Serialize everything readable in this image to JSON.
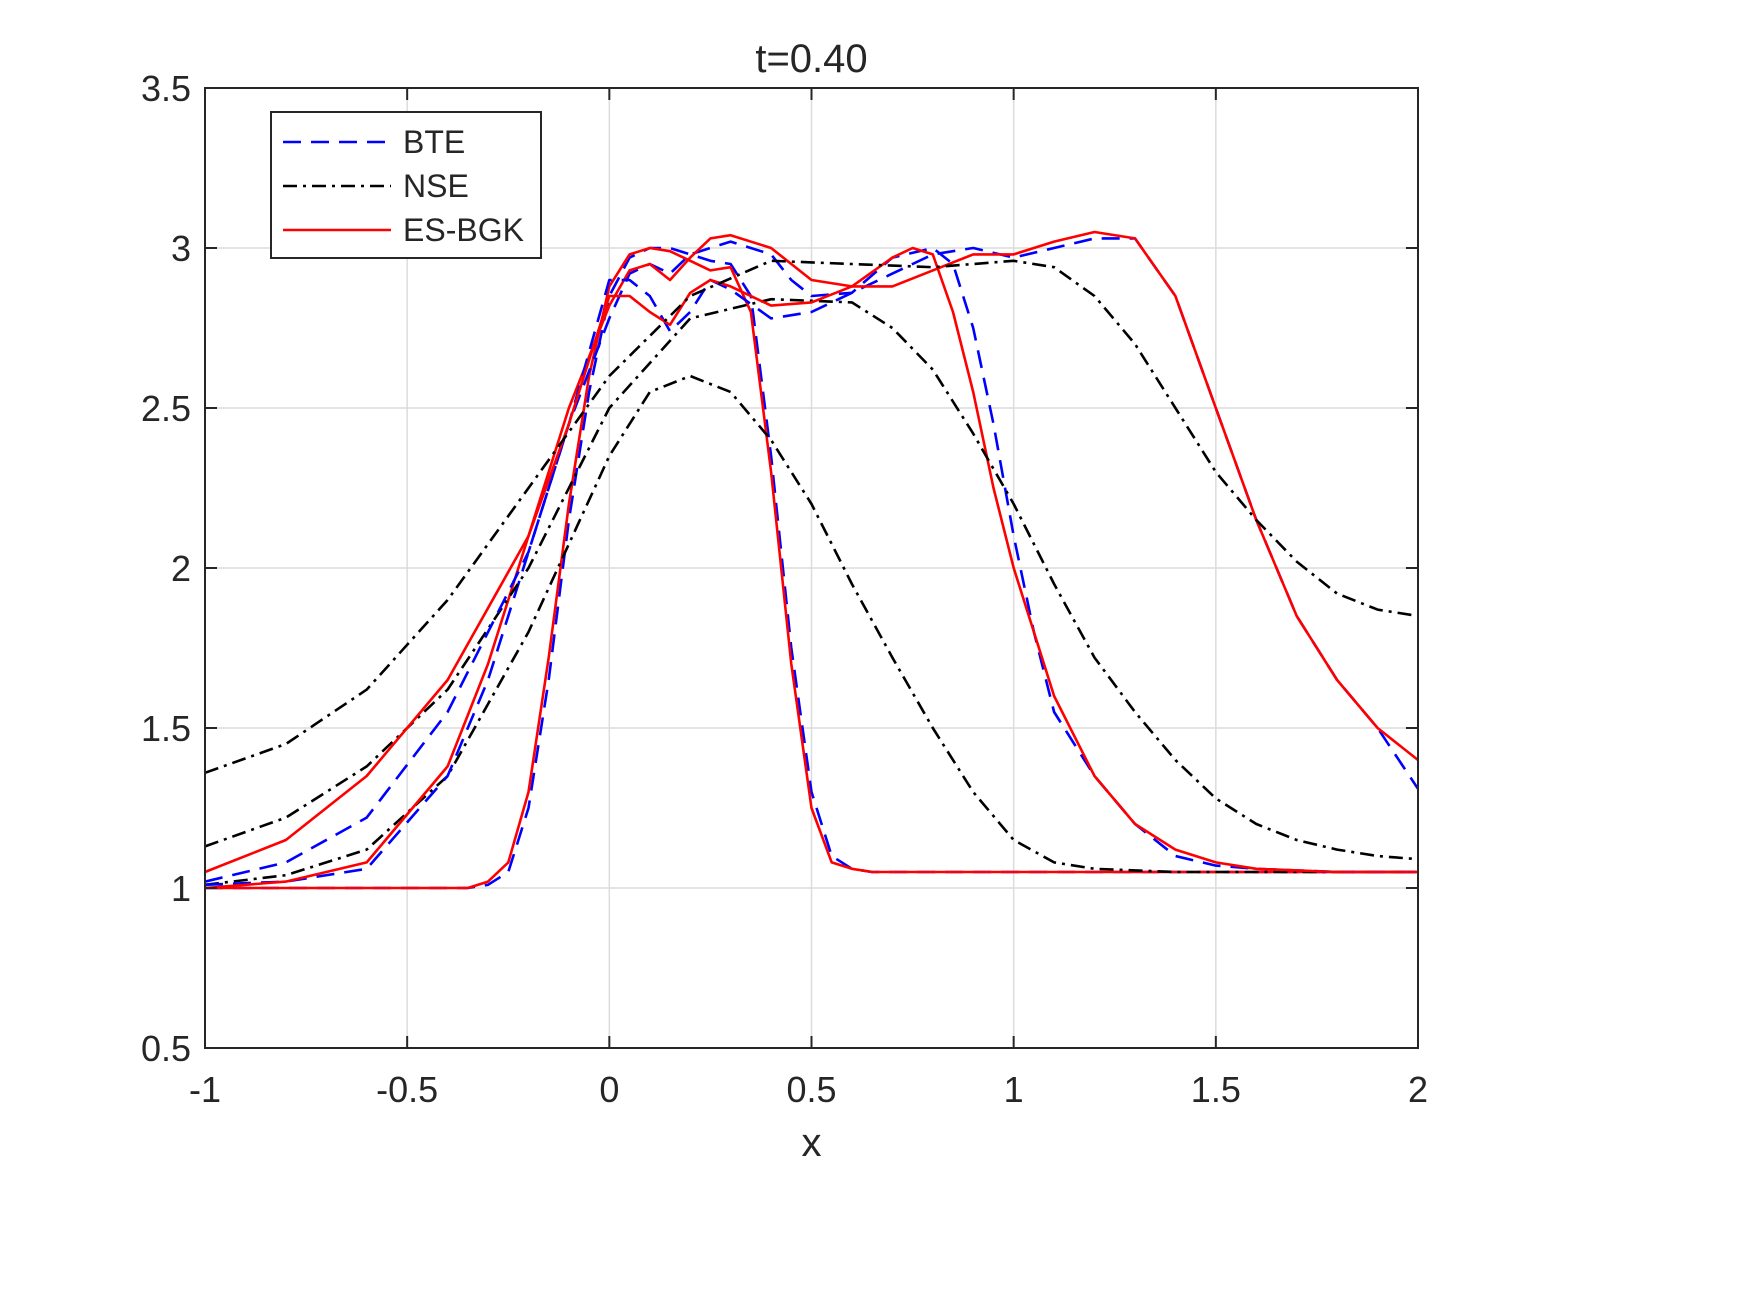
{
  "chart_data": {
    "type": "line",
    "title": "t=0.40",
    "xlabel": "x",
    "ylabel": "",
    "xlim": [
      -1,
      2
    ],
    "ylim": [
      0.5,
      3.5
    ],
    "xticks": [
      -1,
      -0.5,
      0,
      0.5,
      1,
      1.5,
      2
    ],
    "xtick_labels": [
      "-1",
      "-0.5",
      "0",
      "0.5",
      "1",
      "1.5",
      "2"
    ],
    "yticks": [
      0.5,
      1,
      1.5,
      2,
      2.5,
      3,
      3.5
    ],
    "ytick_labels": [
      "0.5",
      "1",
      "1.5",
      "2",
      "2.5",
      "3",
      "3.5"
    ],
    "grid": true,
    "legend_position": "top-left",
    "legend": [
      {
        "label": "BTE",
        "color": "#0000ff",
        "dash": "dashed"
      },
      {
        "label": "NSE",
        "color": "#000000",
        "dash": "dashdot"
      },
      {
        "label": "ES-BGK",
        "color": "#ff0000",
        "dash": "solid"
      }
    ],
    "series": [
      {
        "name": "BTE",
        "color": "#0000ff",
        "dash": "dashed",
        "x": [
          -1,
          -0.5,
          -0.35,
          -0.3,
          -0.25,
          -0.2,
          -0.15,
          -0.1,
          -0.05,
          0,
          0.05,
          0.1,
          0.15,
          0.2,
          0.25,
          0.3,
          0.35,
          0.4,
          0.45,
          0.5,
          0.55,
          0.6,
          0.65,
          0.7,
          0.8,
          1,
          1.5,
          2
        ],
        "y": [
          1,
          1,
          1,
          1.01,
          1.05,
          1.25,
          1.65,
          2.15,
          2.55,
          2.85,
          2.97,
          3,
          3,
          2.98,
          2.96,
          2.95,
          2.85,
          2.35,
          1.75,
          1.3,
          1.1,
          1.06,
          1.05,
          1.05,
          1.05,
          1.05,
          1.05,
          1.05
        ]
      },
      {
        "name": "ES-BGK",
        "color": "#ff0000",
        "dash": "solid",
        "x": [
          -1,
          -0.5,
          -0.35,
          -0.3,
          -0.25,
          -0.2,
          -0.15,
          -0.1,
          -0.05,
          0,
          0.05,
          0.1,
          0.15,
          0.2,
          0.25,
          0.3,
          0.35,
          0.4,
          0.45,
          0.5,
          0.55,
          0.6,
          0.65,
          0.7,
          0.8,
          1,
          1.5,
          2
        ],
        "y": [
          1,
          1,
          1,
          1.02,
          1.08,
          1.3,
          1.72,
          2.2,
          2.6,
          2.88,
          2.98,
          3,
          2.99,
          2.96,
          2.93,
          2.94,
          2.8,
          2.3,
          1.7,
          1.25,
          1.08,
          1.06,
          1.05,
          1.05,
          1.05,
          1.05,
          1.05,
          1.05
        ]
      },
      {
        "name": "NSE",
        "color": "#000000",
        "dash": "dashdot",
        "x": [
          -1,
          -0.8,
          -0.6,
          -0.4,
          -0.2,
          0,
          0.1,
          0.2,
          0.3,
          0.4,
          0.5,
          0.6,
          0.7,
          0.8,
          0.9,
          1,
          1.1,
          1.2,
          1.4,
          1.6,
          1.8,
          2
        ],
        "y": [
          1.01,
          1.04,
          1.12,
          1.35,
          1.8,
          2.35,
          2.55,
          2.6,
          2.55,
          2.4,
          2.2,
          1.95,
          1.72,
          1.5,
          1.3,
          1.15,
          1.08,
          1.06,
          1.05,
          1.05,
          1.05,
          1.05
        ]
      },
      {
        "name": "BTE",
        "color": "#0000ff",
        "dash": "dashed",
        "x": [
          -1,
          -0.8,
          -0.6,
          -0.4,
          -0.3,
          -0.2,
          -0.1,
          0,
          0.05,
          0.1,
          0.15,
          0.2,
          0.3,
          0.4,
          0.45,
          0.5,
          0.6,
          0.7,
          0.8,
          0.85,
          0.9,
          0.95,
          1,
          1.05,
          1.1,
          1.2,
          1.3,
          1.4,
          1.5,
          1.6,
          1.8,
          2
        ],
        "y": [
          1.01,
          1.02,
          1.06,
          1.35,
          1.65,
          2.05,
          2.45,
          2.78,
          2.92,
          2.95,
          2.92,
          2.98,
          3.02,
          2.98,
          2.9,
          2.85,
          2.86,
          2.97,
          3,
          2.95,
          2.75,
          2.45,
          2.1,
          1.8,
          1.55,
          1.35,
          1.2,
          1.1,
          1.07,
          1.06,
          1.05,
          1.05
        ]
      },
      {
        "name": "ES-BGK",
        "color": "#ff0000",
        "dash": "solid",
        "x": [
          -1,
          -0.8,
          -0.6,
          -0.4,
          -0.3,
          -0.2,
          -0.1,
          0,
          0.05,
          0.1,
          0.15,
          0.2,
          0.25,
          0.3,
          0.4,
          0.5,
          0.6,
          0.7,
          0.75,
          0.8,
          0.85,
          0.9,
          0.95,
          1,
          1.1,
          1.2,
          1.3,
          1.4,
          1.5,
          1.6,
          1.8,
          2
        ],
        "y": [
          1,
          1.02,
          1.08,
          1.38,
          1.7,
          2.1,
          2.5,
          2.82,
          2.93,
          2.95,
          2.9,
          2.97,
          3.03,
          3.04,
          3,
          2.9,
          2.88,
          2.97,
          3,
          2.98,
          2.8,
          2.55,
          2.25,
          2,
          1.6,
          1.35,
          1.2,
          1.12,
          1.08,
          1.06,
          1.05,
          1.05
        ]
      },
      {
        "name": "NSE",
        "color": "#000000",
        "dash": "dashdot",
        "x": [
          -1,
          -0.8,
          -0.6,
          -0.4,
          -0.2,
          0,
          0.2,
          0.4,
          0.6,
          0.7,
          0.8,
          0.9,
          1,
          1.1,
          1.2,
          1.3,
          1.4,
          1.5,
          1.6,
          1.7,
          1.8,
          1.9,
          2
        ],
        "y": [
          1.13,
          1.22,
          1.38,
          1.62,
          2,
          2.5,
          2.78,
          2.84,
          2.83,
          2.75,
          2.62,
          2.42,
          2.2,
          1.95,
          1.72,
          1.55,
          1.4,
          1.28,
          1.2,
          1.15,
          1.12,
          1.1,
          1.09
        ]
      },
      {
        "name": "BTE",
        "color": "#0000ff",
        "dash": "dashed",
        "x": [
          -1,
          -0.8,
          -0.6,
          -0.4,
          -0.2,
          -0.1,
          0,
          0.05,
          0.1,
          0.15,
          0.2,
          0.25,
          0.3,
          0.4,
          0.5,
          0.6,
          0.7,
          0.8,
          0.9,
          1,
          1.1,
          1.2,
          1.3,
          1.4,
          1.5,
          1.6,
          1.7,
          1.8,
          1.9,
          2
        ],
        "y": [
          1.02,
          1.08,
          1.22,
          1.55,
          2.05,
          2.45,
          2.9,
          2.9,
          2.85,
          2.74,
          2.8,
          2.9,
          2.87,
          2.78,
          2.8,
          2.86,
          2.92,
          2.98,
          3,
          2.97,
          3,
          3.03,
          3.03,
          2.85,
          2.5,
          2.15,
          1.85,
          1.65,
          1.5,
          1.31
        ]
      },
      {
        "name": "ES-BGK",
        "color": "#ff0000",
        "dash": "solid",
        "x": [
          -1,
          -0.8,
          -0.6,
          -0.4,
          -0.2,
          -0.1,
          0,
          0.05,
          0.1,
          0.15,
          0.2,
          0.25,
          0.3,
          0.4,
          0.5,
          0.6,
          0.7,
          0.8,
          0.9,
          1,
          1.1,
          1.2,
          1.3,
          1.4,
          1.5,
          1.6,
          1.7,
          1.8,
          1.9,
          2
        ],
        "y": [
          1.05,
          1.15,
          1.35,
          1.65,
          2.1,
          2.45,
          2.85,
          2.85,
          2.8,
          2.76,
          2.86,
          2.9,
          2.88,
          2.82,
          2.83,
          2.88,
          2.88,
          2.93,
          2.98,
          2.98,
          3.02,
          3.05,
          3.03,
          2.85,
          2.5,
          2.15,
          1.85,
          1.65,
          1.5,
          1.4
        ]
      },
      {
        "name": "NSE",
        "color": "#000000",
        "dash": "dashdot",
        "x": [
          -1,
          -0.8,
          -0.6,
          -0.4,
          -0.2,
          0,
          0.2,
          0.4,
          0.6,
          0.8,
          1,
          1.1,
          1.2,
          1.3,
          1.4,
          1.5,
          1.6,
          1.7,
          1.8,
          1.9,
          2
        ],
        "y": [
          1.36,
          1.45,
          1.62,
          1.9,
          2.25,
          2.6,
          2.85,
          2.96,
          2.95,
          2.94,
          2.96,
          2.94,
          2.85,
          2.7,
          2.5,
          2.3,
          2.15,
          2.02,
          1.92,
          1.87,
          1.85
        ]
      }
    ]
  }
}
